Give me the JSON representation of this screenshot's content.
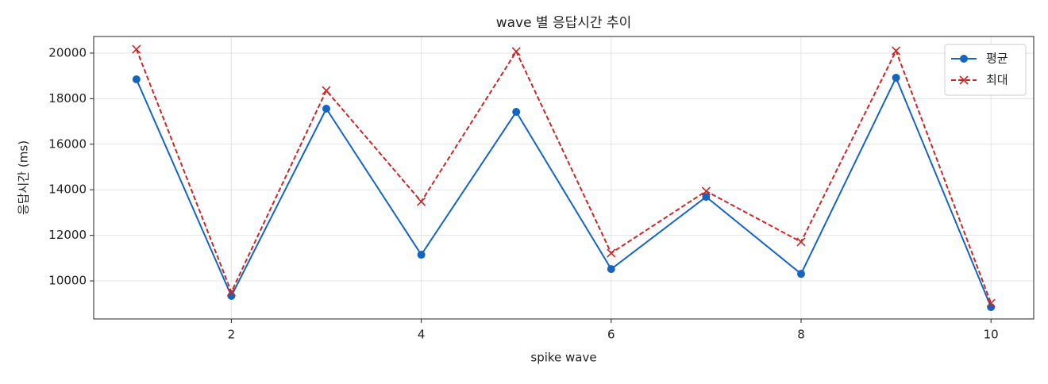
{
  "chart_data": {
    "type": "line",
    "title": "wave 별 응답시간 추이",
    "x_label": "spike wave",
    "y_label": "응답시간 (ms)",
    "x": [
      1,
      2,
      3,
      4,
      5,
      6,
      7,
      8,
      9,
      10
    ],
    "series": [
      {
        "name": "평균",
        "color": "#1565c0",
        "marker": "circle",
        "dash": "solid",
        "values": [
          18850,
          9340,
          17560,
          11150,
          17420,
          10520,
          13690,
          10310,
          18920,
          8850
        ]
      },
      {
        "name": "최대",
        "color": "#c62828",
        "marker": "x",
        "dash": "dashed",
        "values": [
          20170,
          9510,
          18360,
          13480,
          20070,
          11220,
          13940,
          11710,
          20100,
          9020
        ]
      }
    ],
    "xlim": [
      0.55,
      10.45
    ],
    "xticks": [
      2,
      4,
      6,
      8,
      10
    ],
    "ylim": [
      8330,
      20730
    ],
    "yticks": [
      10000,
      12000,
      14000,
      16000,
      18000,
      20000
    ],
    "grid": true,
    "legend": "upper right"
  }
}
